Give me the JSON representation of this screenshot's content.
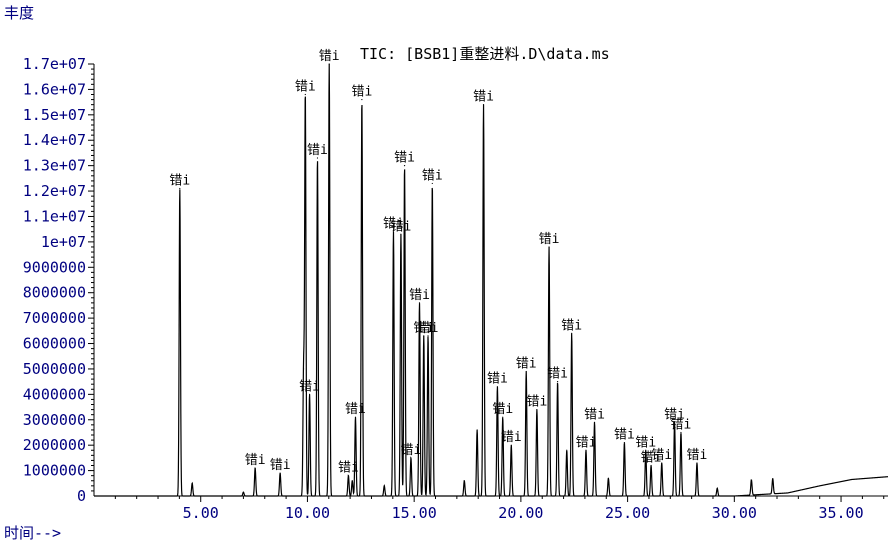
{
  "chart_data": {
    "type": "line",
    "title": "TIC: [BSB1]重整进料.D\\data.ms",
    "ylabel": "丰度",
    "xlabel": "时间-->",
    "xlim": [
      0.0,
      37.2
    ],
    "ylim": [
      0,
      17000000
    ],
    "x_ticks": [
      "5.00",
      "10.00",
      "15.00",
      "20.00",
      "25.00",
      "30.00",
      "35.00"
    ],
    "x_tick_values": [
      5,
      10,
      15,
      20,
      25,
      30,
      35
    ],
    "y_ticks": [
      "1000000",
      "2000000",
      "3000000",
      "4000000",
      "5000000",
      "6000000",
      "7000000",
      "8000000",
      "9000000",
      "1e+07",
      "1.1e+07",
      "1.2e+07",
      "1.3e+07",
      "1.4e+07",
      "1.5e+07",
      "1.6e+07",
      "1.7e+07"
    ],
    "y_tick_values": [
      1000000,
      2000000,
      3000000,
      4000000,
      5000000,
      6000000,
      7000000,
      8000000,
      9000000,
      10000000,
      11000000,
      12000000,
      13000000,
      14000000,
      15000000,
      16000000,
      17000000
    ],
    "peak_label_text": "错i",
    "series": [
      {
        "peaks": [
          {
            "x": 4.02,
            "y": 12100000,
            "label": true
          },
          {
            "x": 4.6,
            "y": 500000,
            "label": false
          },
          {
            "x": 7.0,
            "y": 150000,
            "label": false
          },
          {
            "x": 7.55,
            "y": 1100000,
            "label": true
          },
          {
            "x": 8.72,
            "y": 900000,
            "label": true
          },
          {
            "x": 9.9,
            "y": 15800000,
            "label": true
          },
          {
            "x": 9.82,
            "y": 5000000,
            "label": false
          },
          {
            "x": 10.1,
            "y": 4000000,
            "label": true
          },
          {
            "x": 10.47,
            "y": 13300000,
            "label": true
          },
          {
            "x": 11.02,
            "y": 17000000,
            "label": true
          },
          {
            "x": 11.92,
            "y": 800000,
            "label": true
          },
          {
            "x": 12.1,
            "y": 600000,
            "label": false
          },
          {
            "x": 12.25,
            "y": 3100000,
            "label": true
          },
          {
            "x": 12.55,
            "y": 15600000,
            "label": true
          },
          {
            "x": 13.6,
            "y": 400000,
            "label": false
          },
          {
            "x": 14.03,
            "y": 10400000,
            "label": true
          },
          {
            "x": 14.38,
            "y": 10300000,
            "label": true
          },
          {
            "x": 14.55,
            "y": 13000000,
            "label": true
          },
          {
            "x": 14.85,
            "y": 1500000,
            "label": true
          },
          {
            "x": 15.25,
            "y": 7600000,
            "label": true
          },
          {
            "x": 15.45,
            "y": 6300000,
            "label": true
          },
          {
            "x": 15.65,
            "y": 6300000,
            "label": true
          },
          {
            "x": 15.85,
            "y": 12300000,
            "label": true
          },
          {
            "x": 17.35,
            "y": 600000,
            "label": false
          },
          {
            "x": 17.95,
            "y": 2600000,
            "label": false
          },
          {
            "x": 18.25,
            "y": 15400000,
            "label": true
          },
          {
            "x": 18.9,
            "y": 4300000,
            "label": true
          },
          {
            "x": 19.15,
            "y": 3100000,
            "label": true
          },
          {
            "x": 19.55,
            "y": 2000000,
            "label": true
          },
          {
            "x": 20.25,
            "y": 4900000,
            "label": true
          },
          {
            "x": 20.75,
            "y": 3400000,
            "label": true
          },
          {
            "x": 21.32,
            "y": 9800000,
            "label": true
          },
          {
            "x": 21.72,
            "y": 4500000,
            "label": true
          },
          {
            "x": 22.15,
            "y": 1800000,
            "label": false
          },
          {
            "x": 22.38,
            "y": 6400000,
            "label": true
          },
          {
            "x": 23.05,
            "y": 1800000,
            "label": true
          },
          {
            "x": 23.45,
            "y": 2900000,
            "label": true
          },
          {
            "x": 24.1,
            "y": 700000,
            "label": false
          },
          {
            "x": 24.85,
            "y": 2100000,
            "label": true
          },
          {
            "x": 25.85,
            "y": 1800000,
            "label": true
          },
          {
            "x": 26.1,
            "y": 1200000,
            "label": true
          },
          {
            "x": 26.6,
            "y": 1300000,
            "label": true
          },
          {
            "x": 27.2,
            "y": 2900000,
            "label": true
          },
          {
            "x": 27.5,
            "y": 2500000,
            "label": true
          },
          {
            "x": 28.25,
            "y": 1300000,
            "label": true
          },
          {
            "x": 29.2,
            "y": 300000,
            "label": false
          },
          {
            "x": 30.8,
            "y": 600000,
            "label": false
          },
          {
            "x": 31.8,
            "y": 600000,
            "label": false
          }
        ],
        "baseline_drift": [
          [
            30.0,
            0
          ],
          [
            32.5,
            120000
          ],
          [
            34.0,
            400000
          ],
          [
            35.5,
            650000
          ],
          [
            37.2,
            760000
          ]
        ]
      }
    ],
    "grid": false,
    "color": "#000000",
    "label_color": "#000000",
    "axis_text_color": "#000080"
  }
}
